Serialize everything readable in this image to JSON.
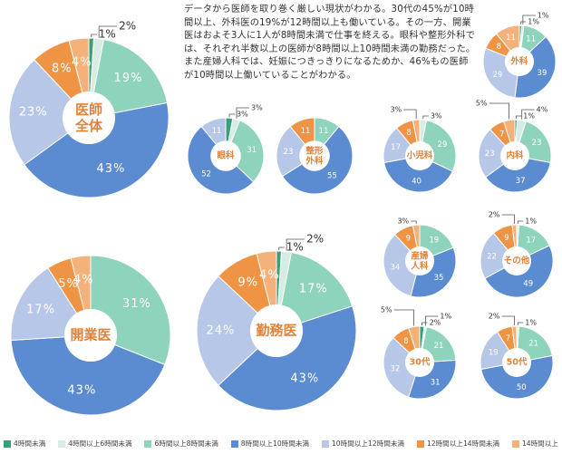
{
  "description": "データから医師を取り巻く厳しい現状がわかる。30代の45%が10時間以上、外科医の19%が12時間以上も働いている。その一方、開業医はおよそ3人に1人が8時間未満で仕事を終える。眼科や整形外科では、それぞれ半数以上の医師が8時間以上10時間未満の勤務だった。また産婦人科では、妊娠につきっきりになるためか、46%もの医師が10時間以上働いていることがわかる。",
  "legend": {
    "categories": [
      "4時間未満",
      "4時間以上6時間未満",
      "6時間以上8時間未満",
      "8時間以上10時間未満",
      "10時間以上12時間未満",
      "12時間以上14時間未満",
      "14時間以上"
    ],
    "colors": [
      "#3a9e78",
      "#d6ede4",
      "#8ed3bb",
      "#5b8bd0",
      "#b7c7e7",
      "#ef9445",
      "#f4b27a"
    ]
  },
  "chart_data": [
    {
      "type": "pie",
      "title": "医師全体",
      "values": [
        1,
        2,
        19,
        43,
        23,
        8,
        4
      ],
      "value_labels": [
        "1%",
        "2%",
        "19%",
        "43%",
        "23%",
        "8%",
        "4%"
      ]
    },
    {
      "type": "pie",
      "title": "外科",
      "values": [
        1,
        1,
        11,
        39,
        29,
        8,
        11
      ],
      "value_labels": [
        "1%",
        "1%",
        "11",
        "39",
        "29",
        "8",
        "11"
      ]
    },
    {
      "type": "pie",
      "title": "眼科",
      "values": [
        3,
        3,
        31,
        52,
        11,
        0,
        0
      ],
      "value_labels": [
        "3%",
        "3%",
        "31",
        "52",
        "11",
        null,
        null
      ]
    },
    {
      "type": "pie",
      "title": "整形外科",
      "values": [
        0,
        0,
        11,
        55,
        23,
        11,
        0
      ],
      "value_labels": [
        null,
        null,
        "11",
        "55",
        "23",
        "11",
        null
      ]
    },
    {
      "type": "pie",
      "title": "小児科",
      "values": [
        0,
        3,
        29,
        40,
        17,
        8,
        3
      ],
      "value_labels": [
        null,
        "3%",
        "29",
        "40",
        "17",
        "8",
        "3%"
      ]
    },
    {
      "type": "pie",
      "title": "内科",
      "values": [
        1,
        4,
        23,
        37,
        23,
        7,
        5
      ],
      "value_labels": [
        "1%",
        "4%",
        "23",
        "37",
        "23",
        "7",
        "5%"
      ]
    },
    {
      "type": "pie",
      "title": "開業医",
      "values": [
        0,
        0,
        31,
        43,
        17,
        5,
        4
      ],
      "value_labels": [
        null,
        null,
        "31%",
        "43%",
        "17%",
        "5%",
        "4%"
      ]
    },
    {
      "type": "pie",
      "title": "勤務医",
      "values": [
        1,
        2,
        17,
        43,
        24,
        9,
        4
      ],
      "value_labels": [
        "1%",
        "2%",
        "17%",
        "43%",
        "24%",
        "9%",
        "4%"
      ]
    },
    {
      "type": "pie",
      "title": "産婦人科",
      "values": [
        0,
        0,
        19,
        35,
        34,
        9,
        3
      ],
      "value_labels": [
        null,
        null,
        "19",
        "35",
        "34",
        "9",
        "3%"
      ]
    },
    {
      "type": "pie",
      "title": "その他",
      "values": [
        0,
        1,
        17,
        49,
        22,
        9,
        2
      ],
      "value_labels": [
        null,
        "1%",
        "17",
        "49",
        "22",
        "9",
        "2%"
      ]
    },
    {
      "type": "pie",
      "title": "30代",
      "values": [
        2,
        1,
        21,
        31,
        32,
        8,
        5
      ],
      "value_labels": [
        "2%",
        "1%",
        "21",
        "31",
        "32",
        "8",
        "5%"
      ]
    },
    {
      "type": "pie",
      "title": "50代",
      "values": [
        0,
        1,
        21,
        50,
        19,
        7,
        2
      ],
      "value_labels": [
        null,
        "1%",
        "21",
        "50",
        "19",
        "7",
        "2%"
      ]
    }
  ]
}
